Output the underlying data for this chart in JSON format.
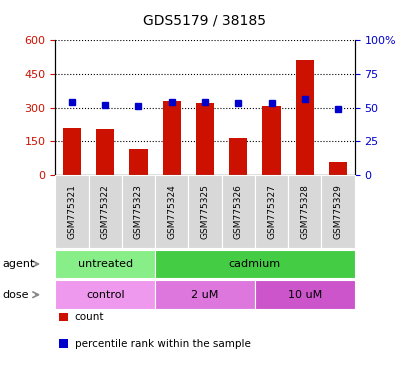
{
  "title": "GDS5179 / 38185",
  "samples": [
    "GSM775321",
    "GSM775322",
    "GSM775323",
    "GSM775324",
    "GSM775325",
    "GSM775326",
    "GSM775327",
    "GSM775328",
    "GSM775329"
  ],
  "counts": [
    210,
    205,
    115,
    330,
    320,
    165,
    305,
    510,
    55
  ],
  "percentiles": [
    54,
    52,
    51,
    54,
    54,
    53,
    53,
    56,
    49
  ],
  "left_ylim": [
    0,
    600
  ],
  "right_ylim": [
    0,
    100
  ],
  "left_yticks": [
    0,
    150,
    300,
    450,
    600
  ],
  "right_yticks": [
    0,
    25,
    50,
    75,
    100
  ],
  "right_yticklabels": [
    "0",
    "25",
    "50",
    "75",
    "100%"
  ],
  "bar_color": "#cc1100",
  "dot_color": "#0000cc",
  "bar_width": 0.55,
  "agent_labels": [
    {
      "label": "untreated",
      "span": [
        0,
        2
      ],
      "color": "#88ee88"
    },
    {
      "label": "cadmium",
      "span": [
        3,
        8
      ],
      "color": "#44cc44"
    }
  ],
  "dose_labels": [
    {
      "label": "control",
      "span": [
        0,
        2
      ],
      "color": "#ee99ee"
    },
    {
      "label": "2 uM",
      "span": [
        3,
        5
      ],
      "color": "#dd77dd"
    },
    {
      "label": "10 uM",
      "span": [
        6,
        8
      ],
      "color": "#cc55cc"
    }
  ],
  "agent_row_label": "agent",
  "dose_row_label": "dose",
  "grid_color": "#000000",
  "tick_label_color_left": "#cc1100",
  "tick_label_color_right": "#0000cc",
  "sample_box_color": "#d8d8d8",
  "legend_items": [
    {
      "color": "#cc1100",
      "label": "count"
    },
    {
      "color": "#0000cc",
      "label": "percentile rank within the sample"
    }
  ]
}
